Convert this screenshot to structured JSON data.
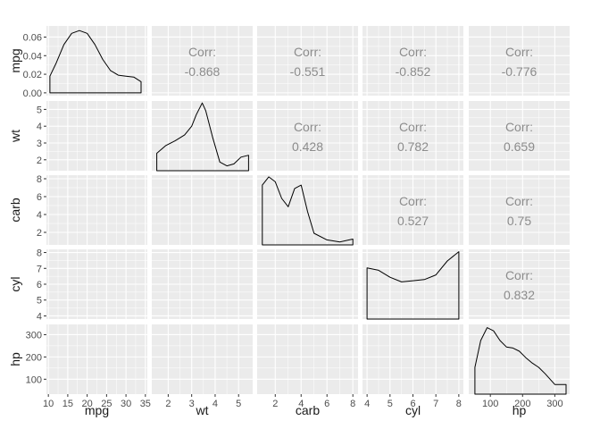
{
  "chart_data": {
    "type": "scatter-matrix",
    "variables": [
      "mpg",
      "wt",
      "carb",
      "cyl",
      "hp"
    ],
    "corr_label": "Corr:",
    "correlations": [
      {
        "row": "wt",
        "col": "mpg",
        "value": "-0.868"
      },
      {
        "row": "carb",
        "col": "mpg",
        "value": "-0.551"
      },
      {
        "row": "cyl",
        "col": "mpg",
        "value": "-0.852"
      },
      {
        "row": "hp",
        "col": "mpg",
        "value": "-0.776"
      },
      {
        "row": "carb",
        "col": "wt",
        "value": "0.428"
      },
      {
        "row": "cyl",
        "col": "wt",
        "value": "0.782"
      },
      {
        "row": "hp",
        "col": "wt",
        "value": "0.659"
      },
      {
        "row": "cyl",
        "col": "carb",
        "value": "0.527"
      },
      {
        "row": "hp",
        "col": "carb",
        "value": "0.75"
      },
      {
        "row": "hp",
        "col": "cyl",
        "value": "0.832"
      }
    ],
    "x_axes": {
      "mpg": {
        "range": [
          9.5,
          35.5
        ],
        "ticks": [
          10,
          15,
          20,
          25,
          30,
          35
        ]
      },
      "wt": {
        "range": [
          1.3,
          5.6
        ],
        "ticks": [
          2,
          3,
          4,
          5
        ]
      },
      "carb": {
        "range": [
          0.6,
          8.4
        ],
        "ticks": [
          2,
          4,
          6,
          8
        ]
      },
      "cyl": {
        "range": [
          3.8,
          8.2
        ],
        "ticks": [
          4,
          5,
          6,
          7,
          8
        ]
      },
      "hp": {
        "range": [
          33,
          346
        ],
        "ticks": [
          100,
          200,
          300
        ]
      }
    },
    "y_axes": {
      "mpg": {
        "range": [
          -0.003,
          0.072
        ],
        "ticks": [
          "0.00",
          "0.02",
          "0.04",
          "0.06"
        ],
        "tick_values": [
          0,
          0.02,
          0.04,
          0.06
        ]
      },
      "wt": {
        "range": [
          1.35,
          5.5
        ],
        "ticks": [
          "2",
          "3",
          "4",
          "5"
        ],
        "tick_values": [
          2,
          3,
          4,
          5
        ]
      },
      "carb": {
        "range": [
          0.6,
          8.4
        ],
        "ticks": [
          "2",
          "4",
          "6",
          "8"
        ],
        "tick_values": [
          2,
          4,
          6,
          8
        ]
      },
      "cyl": {
        "range": [
          3.8,
          8.2
        ],
        "ticks": [
          "4",
          "5",
          "6",
          "7",
          "8"
        ],
        "tick_values": [
          4,
          5,
          6,
          7,
          8
        ]
      },
      "hp": {
        "range": [
          33,
          346
        ],
        "ticks": [
          "100",
          "200",
          "300"
        ],
        "tick_values": [
          100,
          200,
          300
        ]
      }
    },
    "densities": {
      "mpg": {
        "x": [
          10.4,
          12,
          14,
          16,
          18,
          20,
          22,
          24,
          26,
          28,
          30,
          32,
          33.9
        ],
        "y": [
          0.018,
          0.032,
          0.052,
          0.064,
          0.067,
          0.064,
          0.052,
          0.036,
          0.024,
          0.019,
          0.018,
          0.017,
          0.012
        ]
      },
      "wt": {
        "x": [
          1.513,
          1.9,
          2.3,
          2.7,
          3.0,
          3.2,
          3.45,
          3.6,
          3.9,
          4.2,
          4.5,
          4.8,
          5.1,
          5.424
        ],
        "y": [
          0.18,
          0.26,
          0.31,
          0.37,
          0.46,
          0.58,
          0.7,
          0.62,
          0.34,
          0.09,
          0.05,
          0.07,
          0.14,
          0.16
        ]
      },
      "carb": {
        "x": [
          1,
          1.5,
          2,
          2.5,
          3,
          3.5,
          4,
          4.5,
          5,
          6,
          7,
          8
        ],
        "y": [
          0.36,
          0.41,
          0.38,
          0.28,
          0.23,
          0.34,
          0.36,
          0.2,
          0.07,
          0.03,
          0.018,
          0.035
        ]
      },
      "cyl": {
        "x": [
          4,
          4.5,
          5,
          5.5,
          6,
          6.5,
          7,
          7.5,
          8
        ],
        "y": [
          0.22,
          0.21,
          0.18,
          0.16,
          0.165,
          0.17,
          0.19,
          0.25,
          0.29
        ]
      },
      "hp": {
        "x": [
          52,
          70,
          90,
          110,
          130,
          150,
          170,
          190,
          210,
          230,
          250,
          270,
          300,
          335
        ],
        "y": [
          0.0025,
          0.005,
          0.0062,
          0.0059,
          0.005,
          0.0044,
          0.0043,
          0.004,
          0.0034,
          0.0029,
          0.0025,
          0.0019,
          0.0009,
          0.0009
        ]
      }
    },
    "density_ylim": {
      "wt": [
        0,
        0.72
      ],
      "carb": [
        0,
        0.42
      ],
      "cyl": [
        0,
        0.3
      ],
      "hp": [
        0,
        0.0065
      ]
    },
    "xlabel": "",
    "ylabel": "",
    "title": "",
    "grid": true
  }
}
